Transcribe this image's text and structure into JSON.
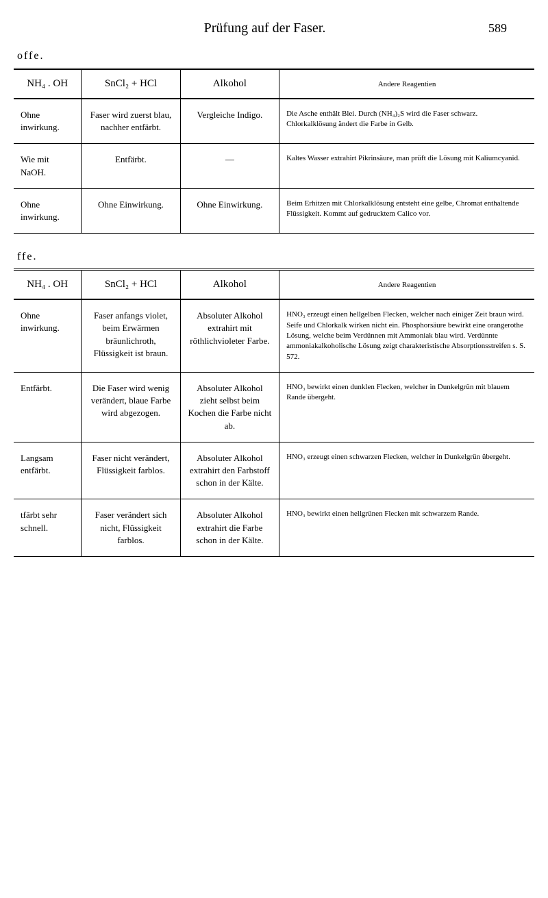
{
  "header": {
    "title": "Prüfung auf der Faser.",
    "page_number": "589"
  },
  "section1": {
    "label": "offe.",
    "columns": [
      "NH₄ . OH",
      "SnCl₂ + HCl",
      "Alkohol",
      "Andere Reagentien"
    ],
    "rows": [
      {
        "c1": "Ohne inwirkung.",
        "c2": "Faser wird zuerst blau, nachher entfärbt.",
        "c3": "Vergleiche Indigo.",
        "c4": "Die Asche enthält Blei. Durch (NH₄)₂S wird die Faser schwarz. Chlorkalklösung ändert die Farbe in Gelb."
      },
      {
        "c1": "Wie mit NaOH.",
        "c2": "Entfärbt.",
        "c3": "—",
        "c4": "Kaltes Wasser extrahirt Pikrinsäure, man prüft die Lösung mit Kaliumcyanid."
      },
      {
        "c1": "Ohne inwirkung.",
        "c2": "Ohne Einwirkung.",
        "c3": "Ohne Einwirkung.",
        "c4": "Beim Erhitzen mit Chlorkalklösung entsteht eine gelbe, Chromat enthaltende Flüssigkeit. Kommt auf gedrucktem Calico vor."
      }
    ]
  },
  "section2": {
    "label": "ffe.",
    "columns": [
      "NH₄ . OH",
      "SnCl₂ + HCl",
      "Alkohol",
      "Andere Reagentien"
    ],
    "rows": [
      {
        "c1": "Ohne inwirkung.",
        "c2": "Faser anfangs violet, beim Erwärmen bräunlichroth, Flüssigkeit ist braun.",
        "c3": "Absoluter Alkohol extrahirt mit röthlichvioleter Farbe.",
        "c4": "HNO₃ erzeugt einen hellgelben Flecken, welcher nach einiger Zeit braun wird. Seife und Chlorkalk wirken nicht ein. Phosphorsäure bewirkt eine orangerothe Lösung, welche beim Verdünnen mit Ammoniak blau wird. Verdünnte ammoniakalkoholische Lösung zeigt charakteristische Absorptionsstreifen s. S. 572."
      },
      {
        "c1": "Entfärbt.",
        "c2": "Die Faser wird wenig verändert, blaue Farbe wird abgezogen.",
        "c3": "Absoluter Alkohol zieht selbst beim Kochen die Farbe nicht ab.",
        "c4": "HNO₃ bewirkt einen dunklen Flecken, welcher in Dunkelgrün mit blauem Rande übergeht."
      },
      {
        "c1": "Langsam entfärbt.",
        "c2": "Faser nicht verändert, Flüssigkeit farblos.",
        "c3": "Absoluter Alkohol extrahirt den Farbstoff schon in der Kälte.",
        "c4": "HNO₃ erzeugt einen schwarzen Flecken, welcher in Dunkelgrün übergeht."
      },
      {
        "c1": "tfärbt sehr schnell.",
        "c2": "Faser verändert sich nicht, Flüssigkeit farblos.",
        "c3": "Absoluter Alkohol extrahirt die Farbe schon in der Kälte.",
        "c4": "HNO₃ bewirkt einen hellgrünen Flecken mit schwarzem Rande."
      }
    ]
  }
}
